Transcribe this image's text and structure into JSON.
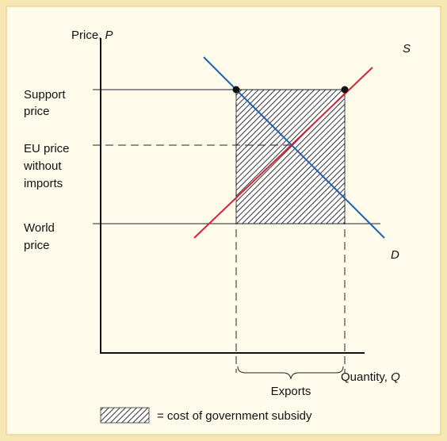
{
  "axes": {
    "y_label": {
      "text": "Price, ",
      "var": "P"
    },
    "x_label": {
      "text": "Quantity, ",
      "var": "Q"
    }
  },
  "price_levels": [
    {
      "lines": [
        "Support",
        "price"
      ]
    },
    {
      "lines": [
        "EU price",
        "without",
        "imports"
      ]
    },
    {
      "lines": [
        "World",
        "price"
      ]
    }
  ],
  "curves": {
    "supply": "S",
    "demand": "D"
  },
  "brace_label": "Exports",
  "legend": "= cost of government subsidy"
}
